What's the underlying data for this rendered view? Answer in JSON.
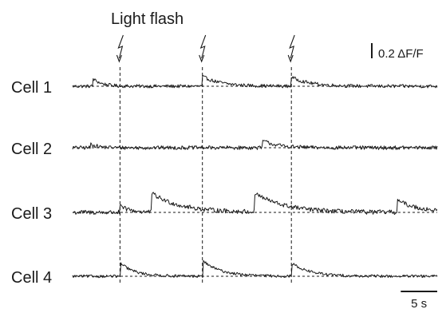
{
  "chart_data": {
    "type": "line",
    "title": "Light flash",
    "x_unit": "s",
    "y_unit": "ΔF/F",
    "x_range": [
      0,
      50
    ],
    "scale_bars": {
      "y": {
        "value": 0.2,
        "label": "0.2 ΔF/F"
      },
      "x": {
        "value": 5,
        "label": "5 s"
      }
    },
    "flash_times": [
      6.5,
      17.8,
      30.0
    ],
    "series": [
      {
        "name": "Cell 1",
        "baseline": 0,
        "events": [
          {
            "t": 2.8,
            "amp": 0.1,
            "tau": 1.2
          },
          {
            "t": 17.8,
            "amp": 0.13,
            "tau": 2.5
          },
          {
            "t": 30.0,
            "amp": 0.12,
            "tau": 2.5
          }
        ],
        "noise": 0.022
      },
      {
        "name": "Cell 2",
        "baseline": 0,
        "events": [
          {
            "t": 2.5,
            "amp": 0.05,
            "tau": 1.0
          },
          {
            "t": 26.0,
            "amp": 0.1,
            "tau": 2.0
          }
        ],
        "noise": 0.025
      },
      {
        "name": "Cell 3",
        "baseline": 0,
        "events": [
          {
            "t": 6.5,
            "amp": 0.08,
            "tau": 1.5
          },
          {
            "t": 10.8,
            "amp": 0.25,
            "tau": 4.0
          },
          {
            "t": 25.0,
            "amp": 0.25,
            "tau": 4.0
          },
          {
            "t": 44.5,
            "amp": 0.16,
            "tau": 3.0
          }
        ],
        "noise": 0.03
      },
      {
        "name": "Cell 4",
        "baseline": 0,
        "events": [
          {
            "t": 6.6,
            "amp": 0.17,
            "tau": 2.0
          },
          {
            "t": 17.9,
            "amp": 0.2,
            "tau": 2.5
          },
          {
            "t": 30.1,
            "amp": 0.17,
            "tau": 2.5
          }
        ],
        "noise": 0.018
      }
    ],
    "colors": {
      "trace": "#1a1a1a",
      "baseline": "#1a1a1a",
      "flash_line": "#1a1a1a"
    }
  }
}
